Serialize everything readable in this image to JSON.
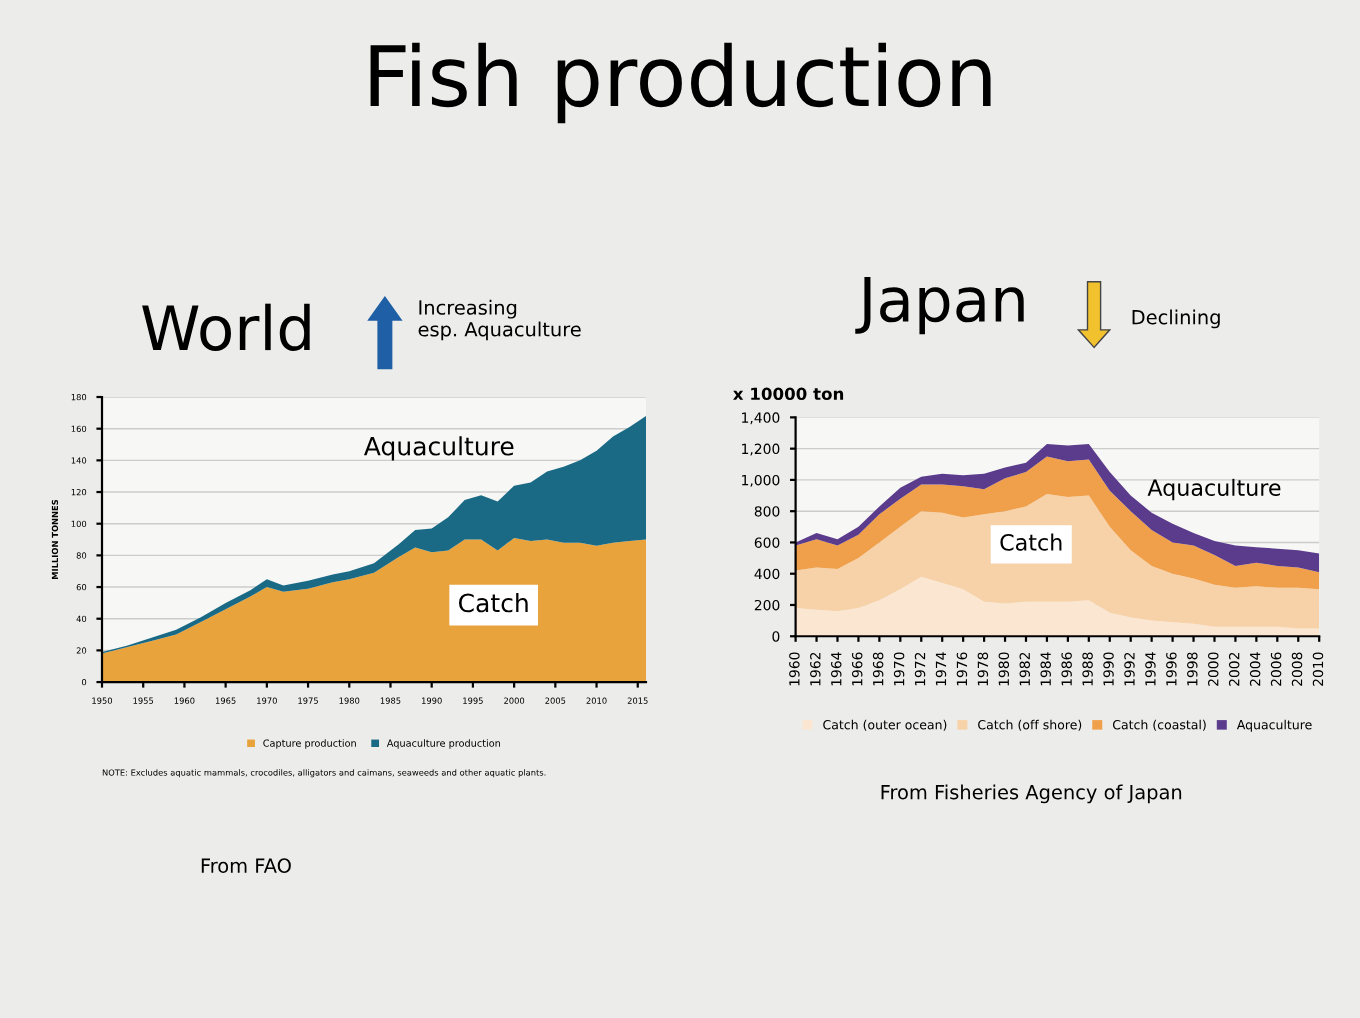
{
  "chart_data": [
    {
      "type": "other",
      "title": "Fish production"
    },
    {
      "type": "area",
      "stacked": true,
      "title": "World",
      "ylabel": "MILLION TONNES",
      "x": [
        1950,
        1953,
        1956,
        1959,
        1962,
        1965,
        1968,
        1970,
        1972,
        1975,
        1978,
        1980,
        1983,
        1986,
        1988,
        1990,
        1992,
        1994,
        1996,
        1998,
        2000,
        2002,
        2004,
        2006,
        2008,
        2010,
        2012,
        2014,
        2016
      ],
      "series": [
        {
          "name": "Capture production",
          "color": "#e8a33c",
          "values": [
            18,
            22,
            26,
            30,
            38,
            46,
            54,
            60,
            57,
            59,
            63,
            65,
            69,
            79,
            85,
            82,
            83,
            90,
            90,
            83,
            91,
            89,
            90,
            88,
            88,
            86,
            88,
            89,
            90
          ]
        },
        {
          "name": "Aquaculture production",
          "color": "#1a6a85",
          "values": [
            1,
            1,
            2,
            3,
            3,
            4,
            4,
            5,
            4,
            5,
            5,
            5,
            6,
            8,
            11,
            15,
            21,
            25,
            28,
            31,
            33,
            37,
            43,
            48,
            52,
            60,
            67,
            72,
            78
          ]
        }
      ],
      "xlim": [
        1950,
        2016
      ],
      "xticks": [
        1950,
        1955,
        1960,
        1965,
        1970,
        1975,
        1980,
        1985,
        1990,
        1995,
        2000,
        2005,
        2010,
        2015
      ],
      "ylim": [
        0,
        180
      ],
      "yticks": [
        0,
        20,
        40,
        60,
        80,
        100,
        120,
        140,
        160,
        180
      ],
      "grid": "y",
      "legend": "bottom",
      "annotations": [
        "Aquaculture",
        "Catch",
        "Increasing\nesp. Aquaculture",
        "NOTE: Excludes aquatic mammals, crocodiles, alligators and caimans, seaweeds and other aquatic plants.",
        "From FAO"
      ]
    },
    {
      "type": "area",
      "stacked": true,
      "title": "Japan",
      "ylabel": "x 10000 ton",
      "x": [
        1960,
        1962,
        1964,
        1966,
        1968,
        1970,
        1972,
        1974,
        1976,
        1978,
        1980,
        1982,
        1984,
        1986,
        1988,
        1990,
        1992,
        1994,
        1996,
        1998,
        2000,
        2002,
        2004,
        2006,
        2008,
        2010
      ],
      "series": [
        {
          "name": "Catch (outer ocean)",
          "color": "#fbe6d2",
          "values": [
            180,
            170,
            160,
            180,
            230,
            300,
            380,
            340,
            300,
            220,
            210,
            220,
            220,
            220,
            230,
            150,
            120,
            100,
            90,
            80,
            60,
            60,
            60,
            60,
            50,
            50
          ]
        },
        {
          "name": "Catch (off shore)",
          "color": "#f7d2a8",
          "values": [
            240,
            270,
            270,
            320,
            370,
            400,
            420,
            450,
            460,
            560,
            590,
            610,
            690,
            670,
            670,
            550,
            430,
            350,
            310,
            290,
            270,
            250,
            260,
            250,
            260,
            250
          ]
        },
        {
          "name": "Catch (coastal)",
          "color": "#f0a04b",
          "values": [
            160,
            180,
            150,
            150,
            180,
            180,
            170,
            180,
            200,
            160,
            210,
            220,
            240,
            230,
            230,
            230,
            250,
            230,
            200,
            210,
            190,
            140,
            150,
            140,
            130,
            110
          ]
        },
        {
          "name": "Aquaculture",
          "color": "#5b3c8c",
          "values": [
            20,
            40,
            40,
            50,
            50,
            70,
            50,
            70,
            70,
            100,
            70,
            60,
            80,
            100,
            100,
            120,
            100,
            110,
            120,
            80,
            90,
            130,
            100,
            110,
            110,
            120
          ]
        }
      ],
      "xlim": [
        1960,
        2010
      ],
      "xticks": [
        1960,
        1962,
        1964,
        1966,
        1968,
        1970,
        1972,
        1974,
        1976,
        1978,
        1980,
        1982,
        1984,
        1986,
        1988,
        1990,
        1992,
        1994,
        1996,
        1998,
        2000,
        2002,
        2004,
        2006,
        2008,
        2010
      ],
      "ylim": [
        0,
        1400
      ],
      "yticks": [
        0,
        {
          "value": 200,
          "label": "200"
        },
        {
          "value": 400,
          "label": "400"
        },
        {
          "value": 600,
          "label": "600"
        },
        {
          "value": 800,
          "label": "800"
        },
        {
          "value": 1000,
          "label": "1,000"
        },
        {
          "value": 1200,
          "label": "1,200"
        },
        {
          "value": 1400,
          "label": "1,400"
        }
      ],
      "grid": "y",
      "legend": "bottom",
      "annotations": [
        "Catch",
        "Aquaculture",
        "Declining",
        "From Fisheries Agency of Japan"
      ]
    }
  ]
}
